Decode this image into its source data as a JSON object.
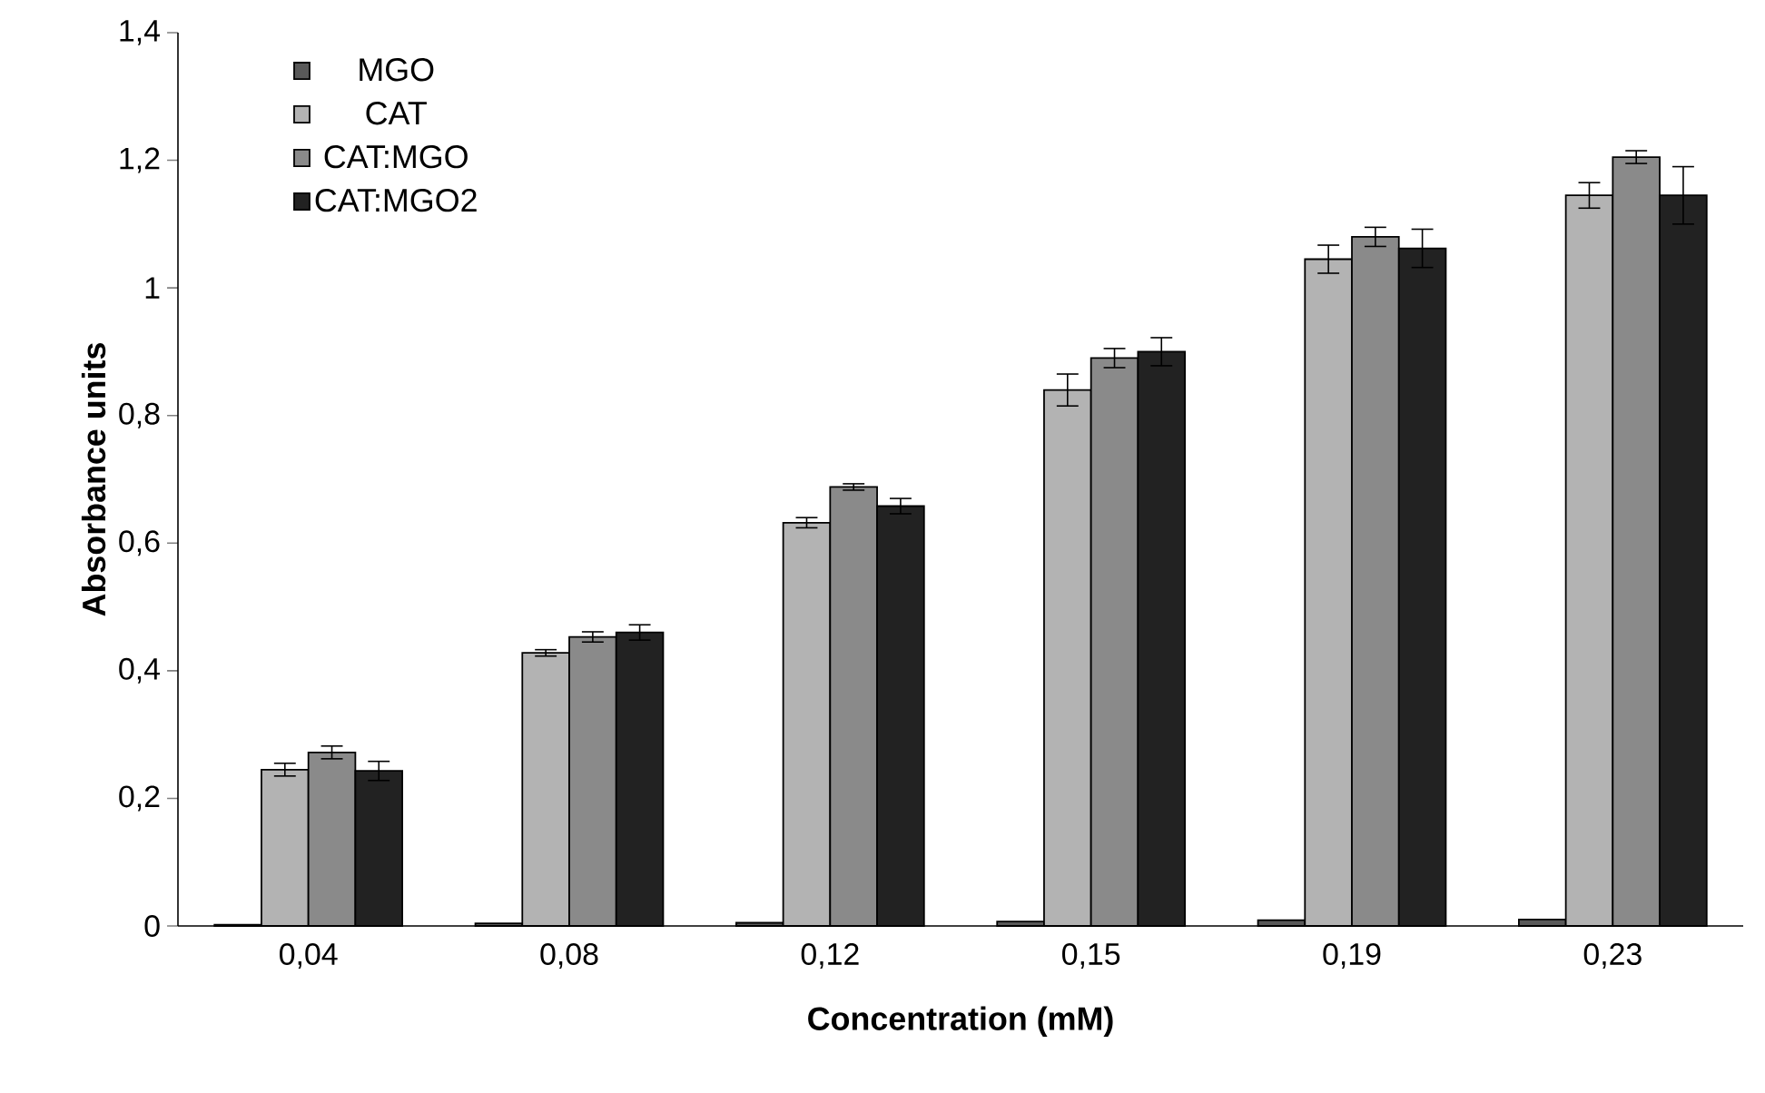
{
  "chart_data": {
    "type": "bar",
    "xlabel": "Concentration (mM)",
    "ylabel": "Absorbance units",
    "categories": [
      "0,04",
      "0,08",
      "0,12",
      "0,15",
      "0,19",
      "0,23"
    ],
    "series": [
      {
        "name": "MGO",
        "color": "#595959",
        "values": [
          0.002,
          0.004,
          0.005,
          0.007,
          0.009,
          0.01
        ]
      },
      {
        "name": "CAT",
        "color": "#b3b3b3",
        "values": [
          0.245,
          0.428,
          0.632,
          0.84,
          1.045,
          1.145
        ],
        "errors": [
          0.01,
          0.005,
          0.008,
          0.025,
          0.022,
          0.02
        ]
      },
      {
        "name": "CAT:MGO",
        "color": "#8a8a8a",
        "values": [
          0.272,
          0.453,
          0.688,
          0.89,
          1.08,
          1.205
        ],
        "errors": [
          0.01,
          0.008,
          0.005,
          0.015,
          0.015,
          0.01
        ]
      },
      {
        "name": "CAT:MGO2",
        "color": "#222222",
        "values": [
          0.243,
          0.46,
          0.658,
          0.9,
          1.062,
          1.145
        ],
        "errors": [
          0.015,
          0.012,
          0.012,
          0.022,
          0.03,
          0.045
        ]
      }
    ],
    "ylim": [
      0,
      1.4
    ],
    "yticks": [
      {
        "value": 0,
        "label": "0"
      },
      {
        "value": 0.2,
        "label": "0,2"
      },
      {
        "value": 0.4,
        "label": "0,4"
      },
      {
        "value": 0.6,
        "label": "0,6"
      },
      {
        "value": 0.8,
        "label": "0,8"
      },
      {
        "value": 1,
        "label": "1"
      },
      {
        "value": 1.2,
        "label": "1,2"
      },
      {
        "value": 1.4,
        "label": "1,4"
      }
    ],
    "grid": false,
    "legend": "top left"
  }
}
